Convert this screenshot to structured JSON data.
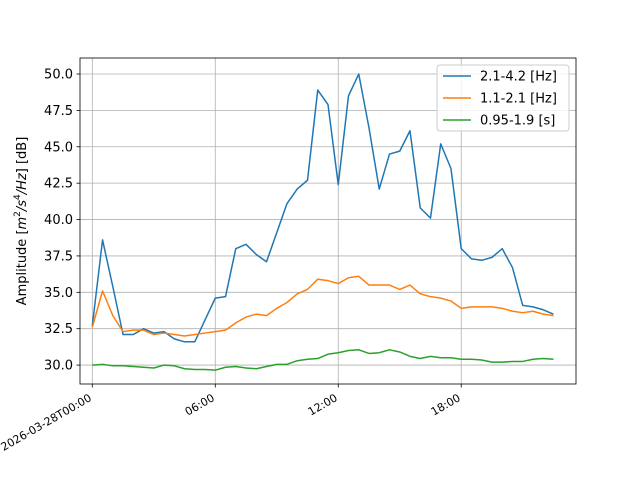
{
  "chart_data": {
    "type": "line",
    "title": "",
    "xlabel": "",
    "ylabel": "Amplitude [m²/s⁴/Hz] [dB]",
    "ylabel_parts": {
      "prefix": "Amplitude [",
      "m": "m",
      "exp2": "2",
      "s": "/s",
      "exp4": "4",
      "hz": "/Hz",
      "suffix": "] [dB]"
    },
    "x_unit": "hours since 2026-03-28T00:00",
    "xlim": [
      -0.6,
      23.6
    ],
    "ylim": [
      28.7,
      51.1
    ],
    "grid": true,
    "legend_position": "top-right",
    "x_ticks": [
      {
        "value": 0,
        "label": "2026-03-28T00:00"
      },
      {
        "value": 6,
        "label": "06:00"
      },
      {
        "value": 12,
        "label": "12:00"
      },
      {
        "value": 18,
        "label": "18:00"
      }
    ],
    "y_ticks": [
      {
        "value": 30.0,
        "label": "30.0"
      },
      {
        "value": 32.5,
        "label": "32.5"
      },
      {
        "value": 35.0,
        "label": "35.0"
      },
      {
        "value": 37.5,
        "label": "37.5"
      },
      {
        "value": 40.0,
        "label": "40.0"
      },
      {
        "value": 42.5,
        "label": "42.5"
      },
      {
        "value": 45.0,
        "label": "45.0"
      },
      {
        "value": 47.5,
        "label": "47.5"
      },
      {
        "value": 50.0,
        "label": "50.0"
      }
    ],
    "x": [
      0,
      0.5,
      1,
      1.5,
      2,
      2.5,
      3,
      3.5,
      4,
      4.5,
      5,
      5.5,
      6,
      6.5,
      7,
      7.5,
      8,
      8.5,
      9,
      9.5,
      10,
      10.5,
      11,
      11.5,
      12,
      12.5,
      13,
      13.5,
      14,
      14.5,
      15,
      15.5,
      16,
      16.5,
      17,
      17.5,
      18,
      18.5,
      19,
      19.5,
      20,
      20.5,
      21,
      21.5,
      22,
      22.5
    ],
    "series": [
      {
        "name": "2.1-4.2 [Hz]",
        "color": "#1f77b4",
        "values": [
          32.7,
          38.6,
          35.4,
          32.1,
          32.1,
          32.5,
          32.2,
          32.3,
          31.8,
          31.6,
          31.6,
          33.1,
          34.6,
          34.7,
          38.0,
          38.3,
          37.6,
          37.1,
          39.1,
          41.1,
          42.1,
          42.7,
          48.9,
          47.9,
          42.4,
          48.5,
          50.0,
          46.3,
          42.1,
          44.5,
          44.7,
          46.1,
          40.8,
          40.1,
          45.2,
          43.5,
          38.0,
          37.3,
          37.2,
          37.4,
          38.0,
          36.7,
          34.1,
          34.0,
          33.8,
          33.5
        ]
      },
      {
        "name": "1.1-2.1 [Hz]",
        "color": "#ff7f0e",
        "values": [
          32.6,
          35.1,
          33.4,
          32.3,
          32.4,
          32.4,
          32.1,
          32.2,
          32.1,
          32.0,
          32.1,
          32.2,
          32.3,
          32.4,
          32.9,
          33.3,
          33.5,
          33.4,
          33.9,
          34.3,
          34.9,
          35.2,
          35.9,
          35.8,
          35.6,
          36.0,
          36.1,
          35.5,
          35.5,
          35.5,
          35.2,
          35.5,
          34.9,
          34.7,
          34.6,
          34.4,
          33.9,
          34.0,
          34.0,
          34.0,
          33.9,
          33.7,
          33.6,
          33.7,
          33.5,
          33.4
        ]
      },
      {
        "name": "0.95-1.9 [s]",
        "color": "#2ca02c",
        "values": [
          30.0,
          30.05,
          29.95,
          29.95,
          29.9,
          29.85,
          29.8,
          30.0,
          29.95,
          29.75,
          29.7,
          29.7,
          29.65,
          29.85,
          29.9,
          29.8,
          29.75,
          29.9,
          30.05,
          30.05,
          30.3,
          30.4,
          30.45,
          30.75,
          30.85,
          31.0,
          31.05,
          30.8,
          30.85,
          31.05,
          30.9,
          30.6,
          30.45,
          30.6,
          30.5,
          30.5,
          30.4,
          30.4,
          30.35,
          30.2,
          30.2,
          30.25,
          30.25,
          30.4,
          30.45,
          30.4
        ]
      }
    ]
  }
}
